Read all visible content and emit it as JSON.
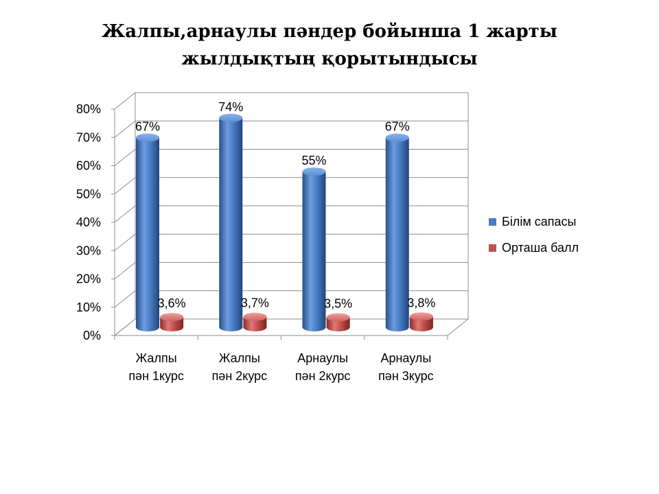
{
  "title": {
    "line1": "Жалпы,арнаулы пәндер бойынша 1 жарты",
    "line2": "жылдықтың қорытындысы"
  },
  "chart_data": {
    "type": "bar",
    "style": "3d-cylinder",
    "categories": [
      [
        "Жалпы",
        "пән 1курс"
      ],
      [
        "Жалпы",
        "пән 2курс"
      ],
      [
        "Арнаулы",
        "пән 2курс"
      ],
      [
        "Арнаулы",
        "пән 3курс"
      ]
    ],
    "series": [
      {
        "name": "Білім сапасы",
        "values": [
          67,
          74,
          55,
          67
        ],
        "labels": [
          "67%",
          "74%",
          "55%",
          "67%"
        ],
        "color": "#4a7ec4"
      },
      {
        "name": "Орташа балл",
        "values": [
          3.6,
          3.7,
          3.5,
          3.8
        ],
        "labels": [
          "3,6%",
          "3,7%",
          "3,5%",
          "3,8%"
        ],
        "color": "#c0504d"
      }
    ],
    "yticks": [
      "0%",
      "10%",
      "20%",
      "30%",
      "40%",
      "50%",
      "60%",
      "70%",
      "80%"
    ],
    "ylim": [
      0,
      80
    ],
    "grid": true,
    "legend_position": "right"
  }
}
